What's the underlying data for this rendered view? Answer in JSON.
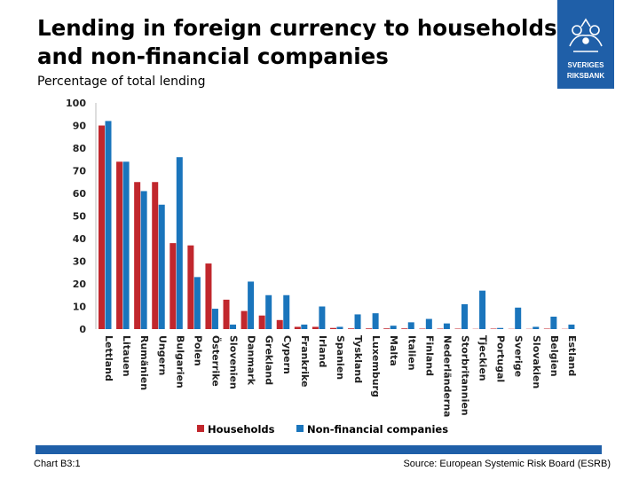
{
  "title": "Lending in foreign currency to households and non-financial companies",
  "subtitle": "Percentage of total lending",
  "logo_text": [
    "SVERIGES",
    "RIKSBANK"
  ],
  "footer": {
    "chart_id": "Chart B3:1",
    "source": "Source: European Systemic Risk Board (ESRB)"
  },
  "colors": {
    "households": "#c1272d",
    "companies": "#1a75bc",
    "accent": "#1f5fa8"
  },
  "chart_data": {
    "type": "bar",
    "title": "Lending in foreign currency to households and non-financial companies",
    "ylabel": "Percentage of total lending",
    "ylim": [
      0,
      100
    ],
    "yticks": [
      0,
      10,
      20,
      30,
      40,
      50,
      60,
      70,
      80,
      90,
      100
    ],
    "grid": false,
    "legend": "bottom",
    "categories": [
      "Latvia",
      "Lithuania",
      "Romania",
      "Hungary",
      "Bulgaria",
      "Poland",
      "Austria",
      "Slovenia",
      "Denmark",
      "Greece",
      "Cyprus",
      "France",
      "Ireland",
      "Spain",
      "Germany",
      "Luxembourg",
      "Malta",
      "Italy",
      "Finland",
      "Netherlands",
      "United Kingdom",
      "Czech Republic",
      "Portugal",
      "Sweden",
      "Slovakia",
      "Belgium",
      "Estonia"
    ],
    "category_labels_as_rendered": [
      "Lettland",
      "Litauen",
      "Rumänien",
      "Ungern",
      "Bulgarien",
      "Polen",
      "Österrike",
      "Slovenien",
      "Danmark",
      "Grekland",
      "Cypern",
      "Frankrike",
      "Irland",
      "Spanien",
      "Tyskland",
      "Luxemburg",
      "Malta",
      "Italien",
      "Finland",
      "Nederländerna",
      "Storbritannien",
      "Tjeckien",
      "Portugal",
      "Sverige",
      "Slovakien",
      "Belgien",
      "Estland"
    ],
    "series": [
      {
        "name": "Households",
        "values": [
          90,
          74,
          65,
          65,
          38,
          37,
          29,
          13,
          8,
          6,
          4,
          1,
          1,
          0.5,
          0.3,
          0.3,
          0.3,
          0.3,
          0.2,
          0.2,
          0.2,
          0.1,
          0.2,
          0.1,
          0.1,
          0.2,
          0.1
        ]
      },
      {
        "name": "Non-financial companies",
        "values": [
          92,
          74,
          61,
          55,
          76,
          23,
          9,
          2,
          21,
          15,
          15,
          2,
          10,
          1,
          6.5,
          7,
          1.5,
          3,
          4.5,
          2.5,
          11,
          17,
          0.5,
          9.5,
          1,
          5.5,
          2
        ]
      }
    ]
  },
  "legend": {
    "households": "Households",
    "companies": "Non-financial companies"
  }
}
